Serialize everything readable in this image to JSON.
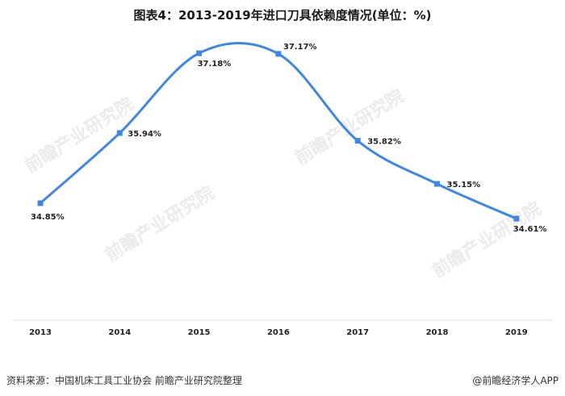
{
  "title": "图表4：2013-2019年进口刀具依赖度情况(单位：%)",
  "footer": {
    "source": "资料来源：中国机床工具工业协会 前瞻产业研究院整理",
    "brand": "@前瞻经济学人APP"
  },
  "watermark": "前瞻产业研究院",
  "colors": {
    "line": "#3f87e0",
    "marker": "#3f87e0",
    "axis": "#d9d9d9",
    "text": "#222222"
  },
  "chart_data": {
    "type": "line",
    "x": [
      "2013",
      "2014",
      "2015",
      "2016",
      "2017",
      "2018",
      "2019"
    ],
    "series": [
      {
        "values": [
          34.85,
          35.94,
          37.18,
          37.17,
          35.82,
          35.15,
          34.61
        ],
        "labels": [
          "34.85%",
          "35.94%",
          "37.18%",
          "37.17%",
          "35.82%",
          "35.15%",
          "34.61%"
        ]
      }
    ],
    "title": "图表4：2013-2019年进口刀具依赖度情况(单位：%)",
    "xlabel": "",
    "ylabel": "",
    "smooth": true,
    "grid": false
  }
}
